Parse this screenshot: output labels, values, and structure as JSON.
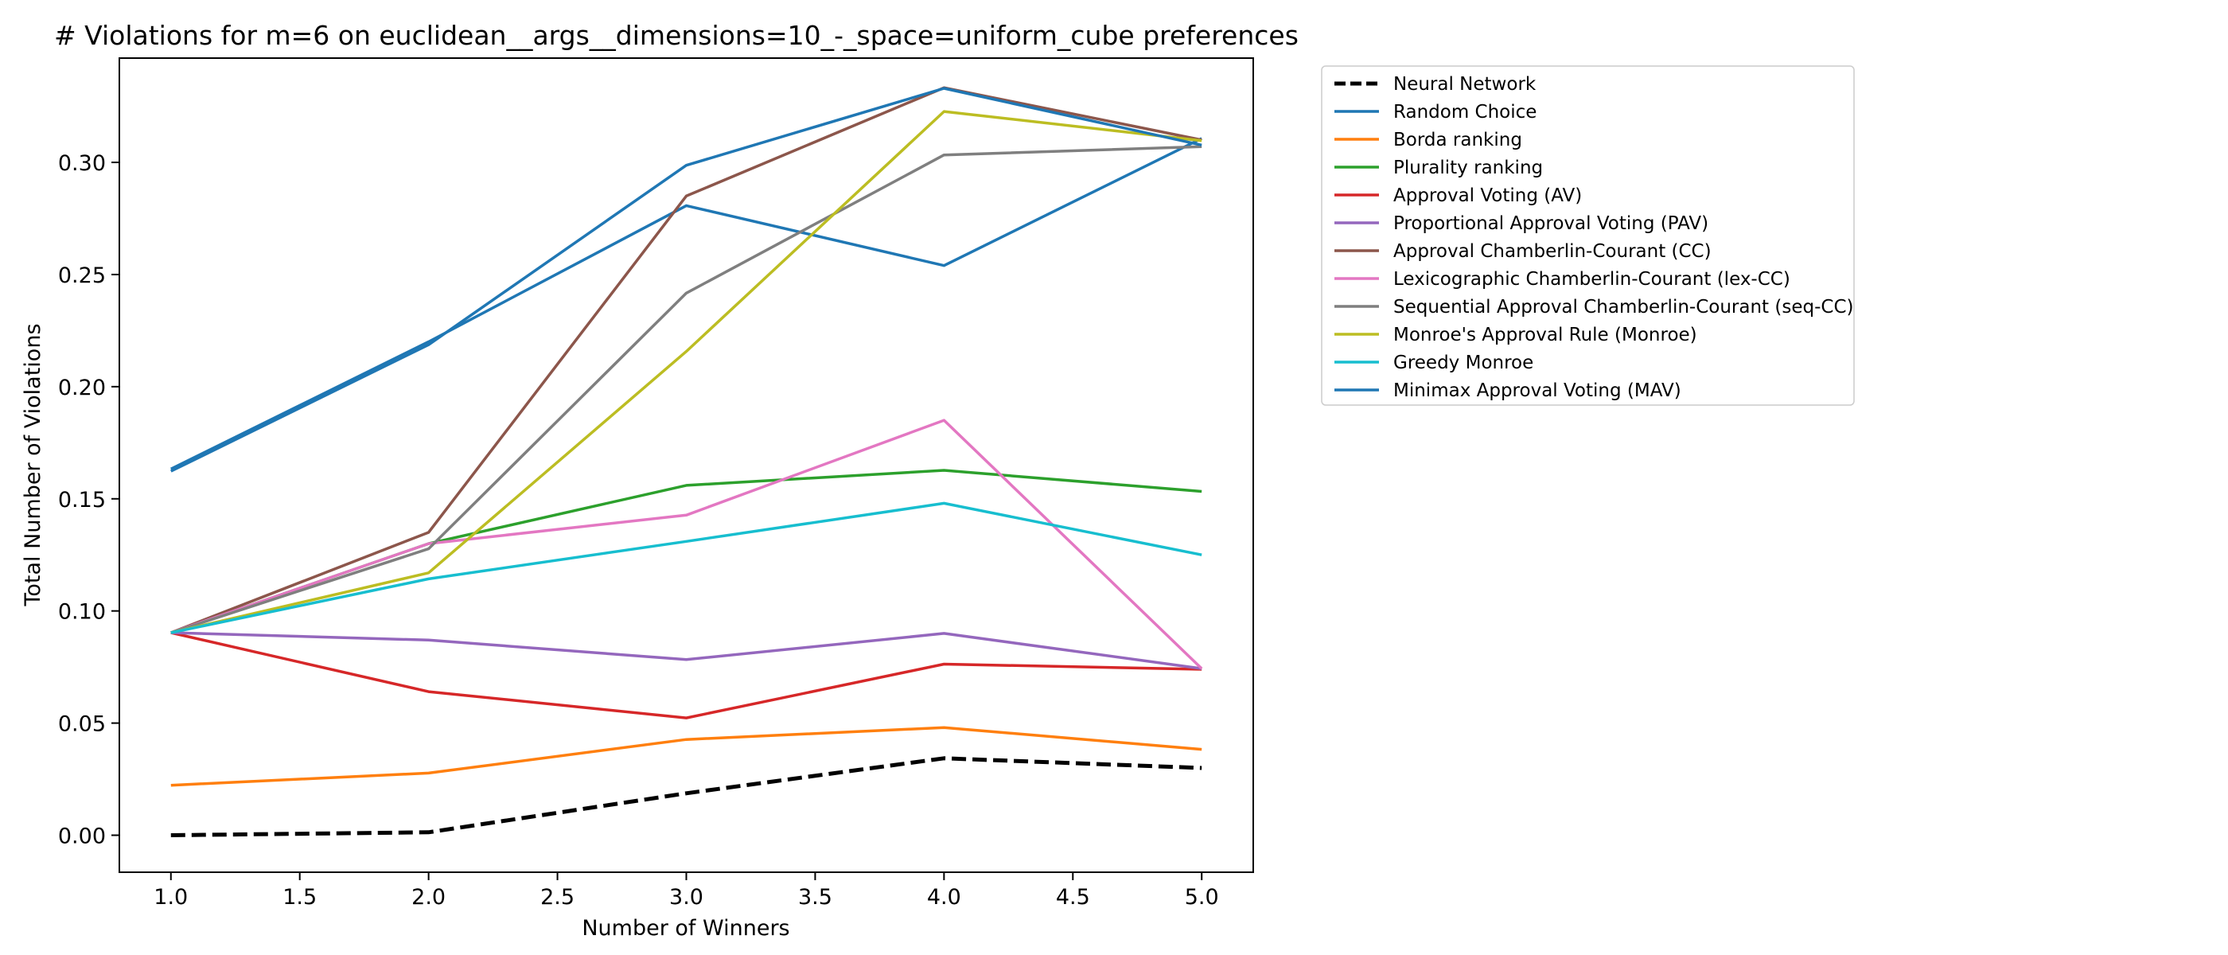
{
  "chart_data": {
    "type": "line",
    "title": "# Violations for m=6 on euclidean__args__dimensions=10_-_space=uniform_cube preferences",
    "xlabel": "Number of Winners",
    "ylabel": "Total Number of Violations",
    "xlim": [
      0.8,
      5.2
    ],
    "ylim": [
      -0.0165,
      0.3465
    ],
    "xticks": [
      1.0,
      1.5,
      2.0,
      2.5,
      3.0,
      3.5,
      4.0,
      4.5,
      5.0
    ],
    "xtick_labels": [
      "1.0",
      "1.5",
      "2.0",
      "2.5",
      "3.0",
      "3.5",
      "4.0",
      "4.5",
      "5.0"
    ],
    "yticks": [
      0.0,
      0.05,
      0.1,
      0.15,
      0.2,
      0.25,
      0.3
    ],
    "ytick_labels": [
      "0.00",
      "0.05",
      "0.10",
      "0.15",
      "0.20",
      "0.25",
      "0.30"
    ],
    "grid": false,
    "legend_position": "outside-right",
    "x": [
      1,
      2,
      3,
      4,
      5
    ],
    "series": [
      {
        "name": "Neural Network",
        "color": "#000000",
        "dashed": true,
        "values": [
          0.0,
          0.0013,
          0.0187,
          0.0343,
          0.03
        ]
      },
      {
        "name": "Random Choice",
        "color": "#1f77b4",
        "dashed": false,
        "values": [
          0.1633,
          0.22,
          0.2807,
          0.254,
          0.3107
        ]
      },
      {
        "name": "Borda ranking",
        "color": "#ff7f0e",
        "dashed": false,
        "values": [
          0.0223,
          0.0277,
          0.0427,
          0.048,
          0.0383
        ]
      },
      {
        "name": "Plurality ranking",
        "color": "#2ca02c",
        "dashed": false,
        "values": [
          0.0903,
          0.13,
          0.156,
          0.1627,
          0.1533
        ]
      },
      {
        "name": "Approval Voting (AV)",
        "color": "#d62728",
        "dashed": false,
        "values": [
          0.0903,
          0.064,
          0.0523,
          0.0763,
          0.074
        ]
      },
      {
        "name": "Proportional Approval Voting (PAV)",
        "color": "#9467bd",
        "dashed": false,
        "values": [
          0.0903,
          0.087,
          0.0783,
          0.09,
          0.0743
        ]
      },
      {
        "name": "Approval Chamberlin-Courant (CC)",
        "color": "#8c564b",
        "dashed": false,
        "values": [
          0.0903,
          0.135,
          0.285,
          0.3333,
          0.31
        ]
      },
      {
        "name": "Lexicographic Chamberlin-Courant (lex-CC)",
        "color": "#e377c2",
        "dashed": false,
        "values": [
          0.0903,
          0.13,
          0.1427,
          0.185,
          0.0743
        ]
      },
      {
        "name": "Sequential Approval Chamberlin-Courant (seq-CC)",
        "color": "#7f7f7f",
        "dashed": false,
        "values": [
          0.0903,
          0.1277,
          0.2417,
          0.3033,
          0.307
        ]
      },
      {
        "name": "Monroe's Approval Rule (Monroe)",
        "color": "#bcbd22",
        "dashed": false,
        "values": [
          0.0903,
          0.117,
          0.2157,
          0.3227,
          0.3097
        ]
      },
      {
        "name": "Greedy Monroe",
        "color": "#17becf",
        "dashed": false,
        "values": [
          0.0903,
          0.1143,
          0.131,
          0.148,
          0.125
        ]
      },
      {
        "name": "Minimax Approval Voting (MAV)",
        "color": "#1f77b4",
        "dashed": false,
        "values": [
          0.1623,
          0.2187,
          0.2987,
          0.333,
          0.3077
        ]
      }
    ]
  }
}
